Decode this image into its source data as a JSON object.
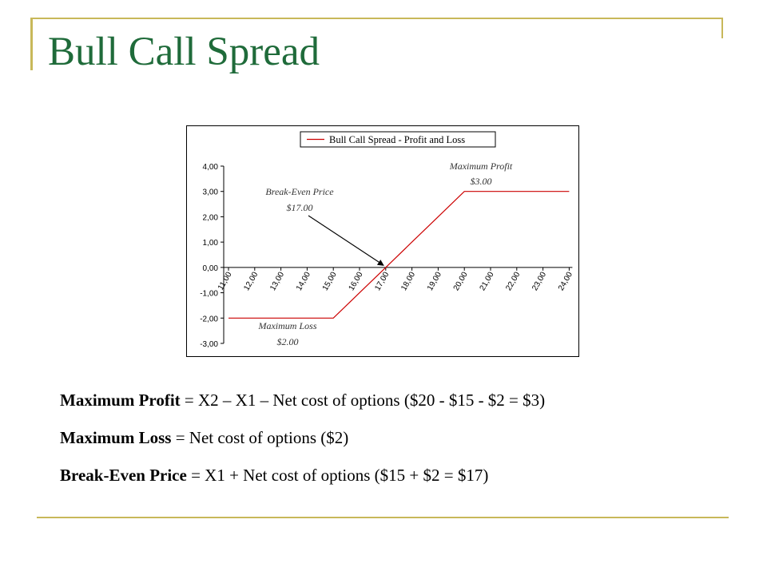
{
  "slide": {
    "title": "Bull Call Spread",
    "lines": [
      {
        "bold": "Maximum Profit",
        "rest": " = X2 – X1 – Net cost of options ($20 - $15 - $2 = $3)"
      },
      {
        "bold": "Maximum Loss",
        "rest": " = Net cost of options ($2)"
      },
      {
        "bold": "Break-Even Price",
        "rest": " = X1 + Net cost of options ($15 + $2 = $17)"
      }
    ],
    "colors": {
      "title": "#1f6b3a",
      "accent_rule": "#c8b85a",
      "series": "#cc0000"
    }
  },
  "chart_data": {
    "type": "line",
    "legend": "Bull Call Spread - Profit and Loss",
    "legend_position": "top",
    "x": [
      11,
      12,
      13,
      14,
      15,
      16,
      17,
      18,
      19,
      20,
      21,
      22,
      23,
      24
    ],
    "x_tick_labels": [
      "11,00",
      "12,00",
      "13,00",
      "14,00",
      "15,00",
      "16,00",
      "17,00",
      "18,00",
      "19,00",
      "20,00",
      "21,00",
      "22,00",
      "23,00",
      "24,00"
    ],
    "series": [
      {
        "name": "Bull Call Spread - Profit and Loss",
        "values": [
          -2,
          -2,
          -2,
          -2,
          -2,
          -1,
          0,
          1,
          2,
          3,
          3,
          3,
          3,
          3
        ]
      }
    ],
    "y_ticks": [
      4,
      3,
      2,
      1,
      0,
      -1,
      -2,
      -3
    ],
    "y_tick_labels": [
      "4,00",
      "3,00",
      "2,00",
      "1,00",
      "0,00",
      "-1,00",
      "-2,00",
      "-3,00"
    ],
    "ylim": [
      -3,
      4
    ],
    "grid": false,
    "annotations": [
      {
        "line1": "Maximum Profit",
        "line2": "$3.00"
      },
      {
        "line1": "Break-Even Price",
        "line2": "$17.00"
      },
      {
        "line1": "Maximum Loss",
        "line2": "$2.00"
      }
    ]
  }
}
